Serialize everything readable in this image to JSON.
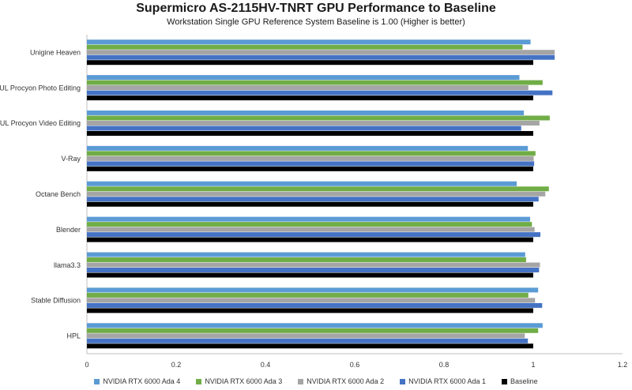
{
  "chart_data": {
    "type": "bar",
    "orientation": "horizontal",
    "title": "Supermicro AS-2115HV-TNRT GPU Performance to Baseline",
    "subtitle": "Workstation Single GPU Reference System Baseline is 1.00 (Higher is better)",
    "categories": [
      "Unigine Heaven",
      "UL Procyon Photo Editing",
      "UL Procyon Video Editing",
      "V-Ray",
      "Octane Bench",
      "Blender",
      "llama3.3",
      "Stable Diffusion",
      "HPL"
    ],
    "xlim": [
      0,
      1.2
    ],
    "xticks": [
      "0",
      "0.2",
      "0.4",
      "0.6",
      "0.8",
      "1",
      "1.2"
    ],
    "grid": false,
    "legend_position": "bottom",
    "series": [
      {
        "name": "NVIDIA RTX 6000 Ada 4",
        "color": "#5b9bd5",
        "values": [
          0.994,
          0.969,
          0.979,
          0.988,
          0.963,
          0.993,
          0.982,
          1.011,
          1.021
        ]
      },
      {
        "name": "NVIDIA RTX 6000 Ada 3",
        "color": "#70ad47",
        "values": [
          0.976,
          1.021,
          1.037,
          1.005,
          1.035,
          0.997,
          0.984,
          0.989,
          1.011
        ]
      },
      {
        "name": "NVIDIA RTX 6000 Ada 2",
        "color": "#a5a5a5",
        "values": [
          1.048,
          0.989,
          1.014,
          1.001,
          1.027,
          1.003,
          1.015,
          1.004,
          0.981
        ]
      },
      {
        "name": "NVIDIA RTX 6000 Ada 1",
        "color": "#4472c4",
        "values": [
          1.048,
          1.043,
          0.973,
          1.002,
          1.012,
          1.016,
          1.013,
          1.02,
          0.988
        ]
      },
      {
        "name": "Baseline",
        "color": "#000000",
        "values": [
          1,
          1,
          1,
          1,
          1,
          1,
          1,
          1,
          1
        ]
      }
    ]
  }
}
